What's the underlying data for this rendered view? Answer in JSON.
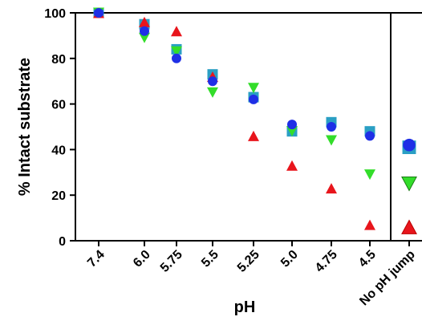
{
  "chart_data": {
    "type": "scatter",
    "xlabel": "pH",
    "ylabel": "% Intact substrate",
    "ylim": [
      0,
      100
    ],
    "yticks": [
      0,
      20,
      40,
      60,
      80,
      100
    ],
    "categories": [
      "7.4",
      "6.0",
      "5.75",
      "5.5",
      "5.25",
      "5.0",
      "4.75",
      "4.5",
      "No pH jump"
    ],
    "series": [
      {
        "marker": "square",
        "color": "#2a9fc4",
        "values": [
          100,
          95,
          84,
          73,
          63,
          48,
          52,
          48,
          41
        ]
      },
      {
        "marker": "triangle-down",
        "color": "#33dd2a",
        "values": [
          100,
          89,
          83,
          65,
          67,
          48,
          44,
          29,
          25
        ]
      },
      {
        "marker": "triangle-up",
        "color": "#e8151c",
        "values": [
          100,
          96,
          92,
          72,
          46,
          33,
          23,
          7,
          6
        ]
      },
      {
        "marker": "circle",
        "color": "#1f2fe6",
        "values": [
          100,
          92,
          80,
          70,
          62,
          51,
          50,
          46,
          42
        ]
      }
    ],
    "grid": false,
    "separator_before_category": "No pH jump"
  }
}
